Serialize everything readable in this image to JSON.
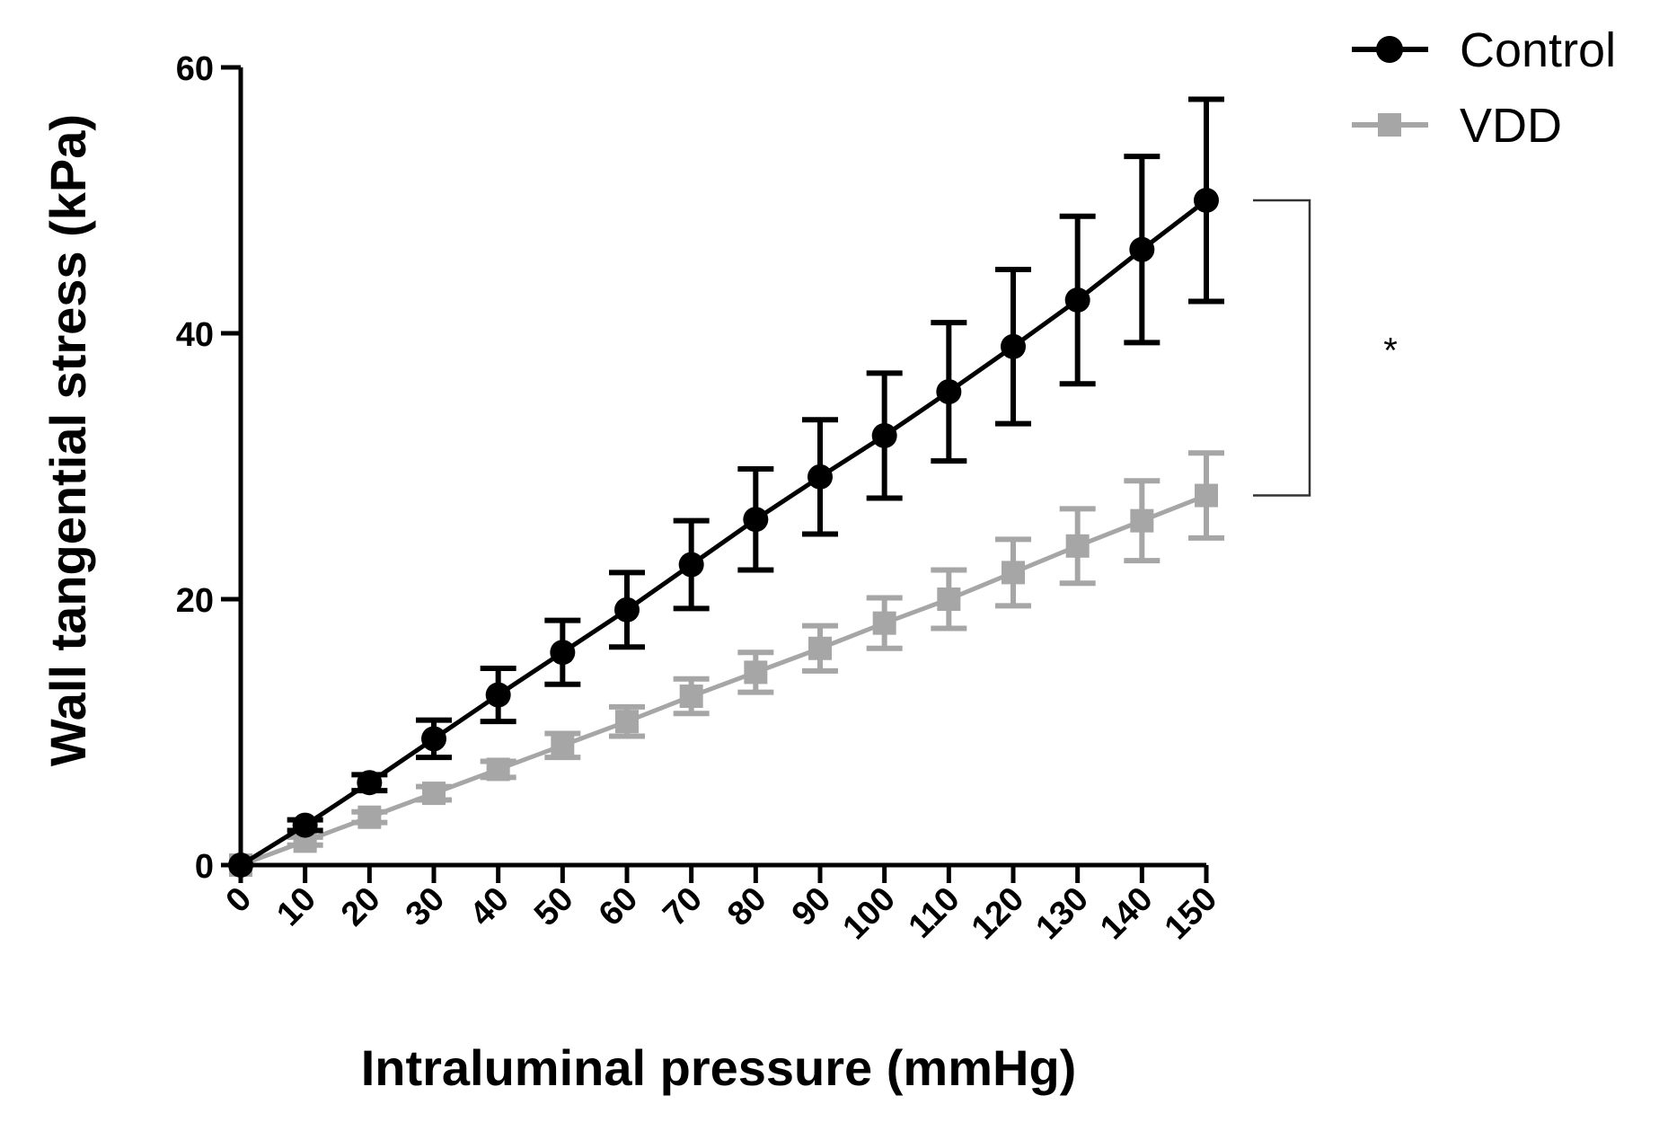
{
  "chart_data": {
    "type": "line",
    "title": "",
    "xlabel": "Intraluminal pressure (mmHg)",
    "ylabel": "Wall tangential stress (kPa)",
    "x": [
      0,
      10,
      20,
      30,
      40,
      50,
      60,
      70,
      80,
      90,
      100,
      110,
      120,
      130,
      140,
      150
    ],
    "xticks": [
      "0",
      "10",
      "20",
      "30",
      "40",
      "50",
      "60",
      "70",
      "80",
      "90",
      "100",
      "110",
      "120",
      "130",
      "140",
      "150"
    ],
    "yticks": [
      "0",
      "20",
      "40",
      "60"
    ],
    "xlim": [
      0,
      150
    ],
    "ylim": [
      0,
      60
    ],
    "grid": false,
    "legend_position": "top-right",
    "series": [
      {
        "name": "Control",
        "color": "#000000",
        "marker": "circle",
        "values": [
          0,
          3.0,
          6.2,
          9.5,
          12.8,
          16.0,
          19.2,
          22.6,
          26.0,
          29.2,
          32.3,
          35.6,
          39.0,
          42.5,
          46.3,
          50.0
        ],
        "errors": [
          0,
          0.4,
          0.6,
          1.4,
          2.0,
          2.4,
          2.8,
          3.3,
          3.8,
          4.3,
          4.7,
          5.2,
          5.8,
          6.3,
          7.0,
          7.6
        ]
      },
      {
        "name": "VDD",
        "color": "#a6a6a6",
        "marker": "square",
        "values": [
          0,
          1.8,
          3.6,
          5.4,
          7.2,
          9.0,
          10.8,
          12.7,
          14.5,
          16.3,
          18.2,
          20.0,
          22.0,
          24.0,
          25.9,
          27.8
        ],
        "errors": [
          0,
          0.3,
          0.4,
          0.5,
          0.6,
          0.9,
          1.1,
          1.3,
          1.5,
          1.7,
          1.9,
          2.2,
          2.5,
          2.8,
          3.0,
          3.2
        ]
      }
    ],
    "annotations": [
      {
        "text": "*",
        "type": "significance-bracket",
        "between": [
          "Control",
          "VDD"
        ],
        "at_x": 150
      }
    ]
  }
}
